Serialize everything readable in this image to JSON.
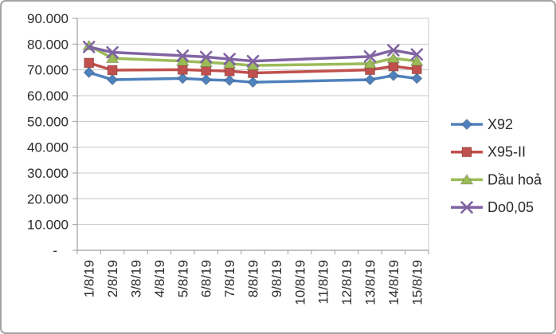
{
  "chart_data": {
    "type": "line",
    "title": "",
    "xlabel": "",
    "ylabel": "",
    "ylim": [
      0,
      90000
    ],
    "grid": true,
    "legend_position": "right",
    "categories": [
      "1/8/19",
      "2/8/19",
      "3/8/19",
      "4/8/19",
      "5/8/19",
      "6/8/19",
      "7/8/19",
      "8/8/19",
      "9/8/19",
      "10/8/19",
      "11/8/19",
      "12/8/19",
      "13/8/19",
      "14/8/19",
      "15/8/19"
    ],
    "y_ticks": [
      {
        "label": "90.000",
        "value": 90000
      },
      {
        "label": "80.000",
        "value": 80000
      },
      {
        "label": "70.000",
        "value": 70000
      },
      {
        "label": "60.000",
        "value": 60000
      },
      {
        "label": "50.000",
        "value": 50000
      },
      {
        "label": "40.000",
        "value": 40000
      },
      {
        "label": "30.000",
        "value": 30000
      },
      {
        "label": "20.000",
        "value": 20000
      },
      {
        "label": "10.000",
        "value": 10000
      },
      {
        "label": "-",
        "value": 0
      }
    ],
    "series": [
      {
        "name": "X92",
        "color": "#4F81BD",
        "marker": "diamond",
        "values": [
          69000,
          66200,
          null,
          null,
          66700,
          66200,
          65900,
          65200,
          null,
          null,
          null,
          null,
          66200,
          67800,
          66700
        ]
      },
      {
        "name": "X95-II",
        "color": "#C0504D",
        "marker": "square",
        "values": [
          72700,
          69900,
          null,
          null,
          70100,
          69800,
          69500,
          68800,
          null,
          null,
          null,
          null,
          70000,
          71400,
          70300
        ]
      },
      {
        "name": "Dầu hoả",
        "color": "#9BBB59",
        "marker": "triangle",
        "values": [
          79400,
          74500,
          null,
          null,
          73400,
          72900,
          72400,
          71700,
          null,
          null,
          null,
          null,
          72400,
          74500,
          73400
        ]
      },
      {
        "name": "Do0,05",
        "color": "#8064A2",
        "marker": "x",
        "values": [
          78900,
          76800,
          null,
          null,
          75500,
          75000,
          74200,
          73400,
          null,
          null,
          null,
          null,
          75200,
          77600,
          76000
        ]
      }
    ]
  }
}
